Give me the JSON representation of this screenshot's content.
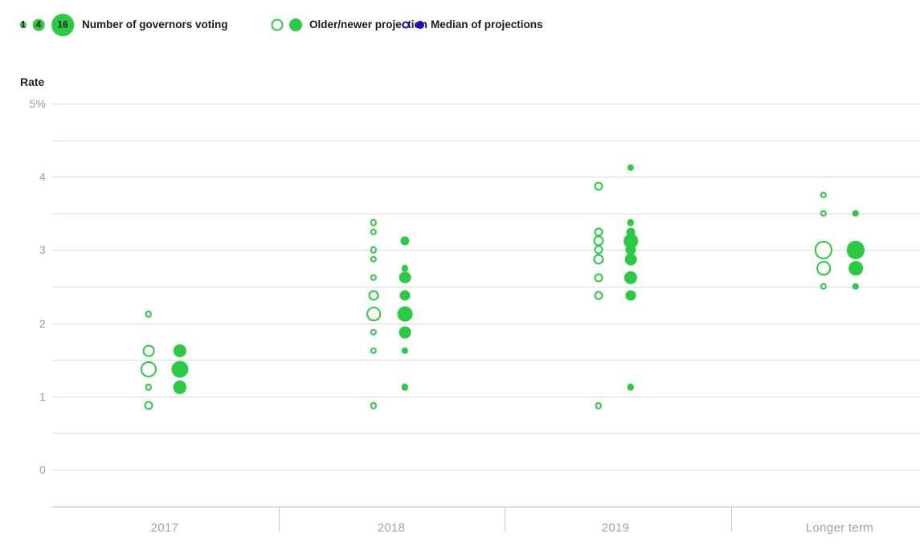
{
  "colors": {
    "green": "#2acb42",
    "blue": "#2408cf",
    "gridline": "#dcdcdc",
    "axis_line": "#b3b3b3",
    "tick_label": "#9b9b9b",
    "category_label": "#a3a3a3",
    "legend_text": "#1b1b1b"
  },
  "legend": {
    "size": {
      "label": "Number of governors voting",
      "items": [
        {
          "n": 1
        },
        {
          "n": 4
        },
        {
          "n": 16
        }
      ]
    },
    "projection": {
      "label": "Older/newer projection"
    },
    "median": {
      "label": "Median of projections"
    }
  },
  "y_axis": {
    "title": "Rate",
    "ticks": [
      "5%",
      "4",
      "3",
      "2",
      "1",
      "0"
    ],
    "tick_values": [
      5,
      4,
      3,
      2,
      1,
      0
    ],
    "min": 0,
    "max": 5,
    "gridline_step": 0.5
  },
  "x_axis": {
    "categories": [
      "2017",
      "2018",
      "2019",
      "Longer term"
    ]
  },
  "chart_data": {
    "type": "scatter",
    "subtype": "bubble-dot-plot",
    "unit": "percent rate",
    "ylim": [
      0,
      5
    ],
    "size_legend_values": [
      1,
      4,
      16
    ],
    "note": "bubble area proportional to number of governors voting; open = older projection, filled = newer projection; median dots not visible in plot",
    "series": [
      {
        "category": "2017",
        "older": [
          {
            "rate": 2.125,
            "n": 1
          },
          {
            "rate": 1.625,
            "n": 4
          },
          {
            "rate": 1.375,
            "n": 8
          },
          {
            "rate": 1.125,
            "n": 1
          },
          {
            "rate": 0.875,
            "n": 2
          }
        ],
        "newer": [
          {
            "rate": 1.625,
            "n": 5
          },
          {
            "rate": 1.375,
            "n": 9
          },
          {
            "rate": 1.125,
            "n": 5
          }
        ]
      },
      {
        "category": "2018",
        "older": [
          {
            "rate": 3.375,
            "n": 1
          },
          {
            "rate": 3.25,
            "n": 1
          },
          {
            "rate": 3.0,
            "n": 1
          },
          {
            "rate": 2.875,
            "n": 1
          },
          {
            "rate": 2.625,
            "n": 1
          },
          {
            "rate": 2.375,
            "n": 3
          },
          {
            "rate": 2.125,
            "n": 6
          },
          {
            "rate": 1.875,
            "n": 1
          },
          {
            "rate": 1.625,
            "n": 1
          },
          {
            "rate": 0.875,
            "n": 1
          }
        ],
        "newer": [
          {
            "rate": 3.125,
            "n": 2
          },
          {
            "rate": 2.75,
            "n": 1
          },
          {
            "rate": 2.625,
            "n": 4
          },
          {
            "rate": 2.375,
            "n": 3
          },
          {
            "rate": 2.125,
            "n": 7
          },
          {
            "rate": 1.875,
            "n": 4
          },
          {
            "rate": 1.625,
            "n": 1
          },
          {
            "rate": 1.125,
            "n": 1
          }
        ]
      },
      {
        "category": "2019",
        "older": [
          {
            "rate": 3.875,
            "n": 2
          },
          {
            "rate": 3.25,
            "n": 2
          },
          {
            "rate": 3.125,
            "n": 3
          },
          {
            "rate": 3.0,
            "n": 2
          },
          {
            "rate": 2.875,
            "n": 3
          },
          {
            "rate": 2.625,
            "n": 2
          },
          {
            "rate": 2.375,
            "n": 2
          },
          {
            "rate": 0.875,
            "n": 1
          }
        ],
        "newer": [
          {
            "rate": 4.125,
            "n": 1
          },
          {
            "rate": 3.375,
            "n": 1
          },
          {
            "rate": 3.25,
            "n": 2
          },
          {
            "rate": 3.125,
            "n": 6
          },
          {
            "rate": 3.0,
            "n": 3
          },
          {
            "rate": 2.875,
            "n": 4
          },
          {
            "rate": 2.625,
            "n": 5
          },
          {
            "rate": 2.375,
            "n": 3
          },
          {
            "rate": 1.125,
            "n": 1
          }
        ]
      },
      {
        "category": "Longer term",
        "older": [
          {
            "rate": 3.75,
            "n": 1
          },
          {
            "rate": 3.5,
            "n": 1
          },
          {
            "rate": 3.0,
            "n": 10
          },
          {
            "rate": 2.75,
            "n": 6
          },
          {
            "rate": 2.5,
            "n": 1
          }
        ],
        "newer": [
          {
            "rate": 3.5,
            "n": 1
          },
          {
            "rate": 3.0,
            "n": 10
          },
          {
            "rate": 2.75,
            "n": 6
          },
          {
            "rate": 2.5,
            "n": 1
          }
        ]
      }
    ]
  }
}
